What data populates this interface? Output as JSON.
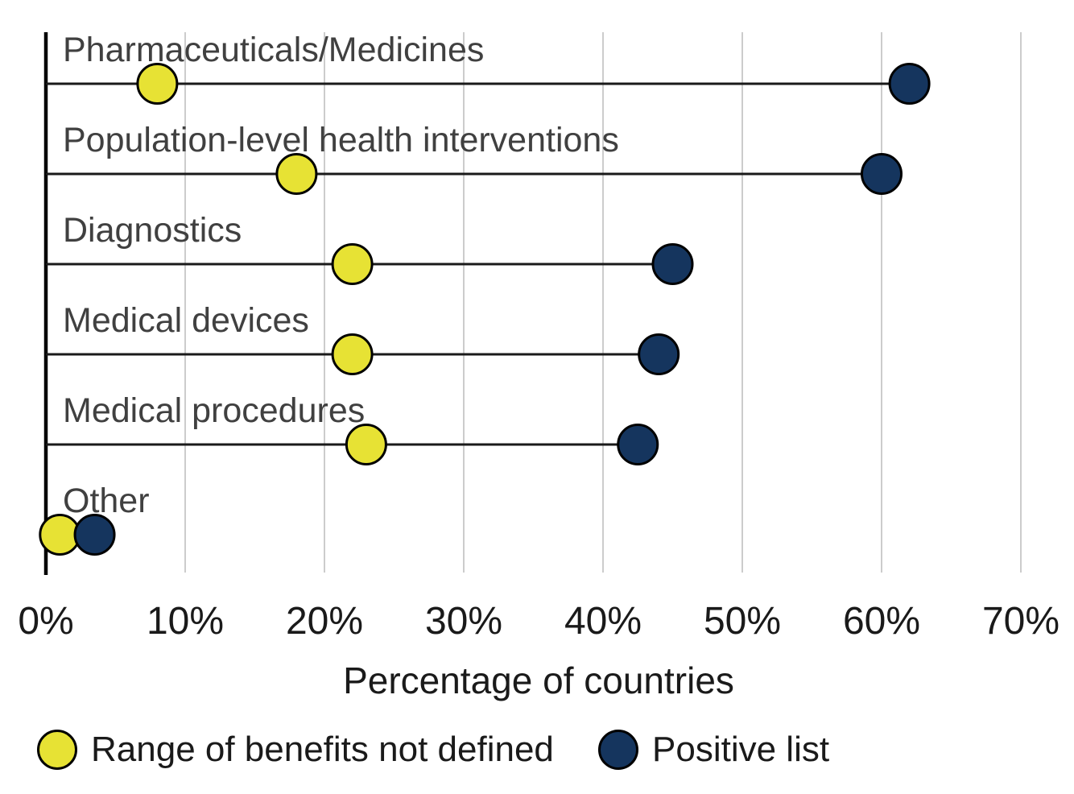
{
  "chart_data": {
    "type": "scatter",
    "variant": "horizontal-dumbbell-dot-plot",
    "title": "",
    "categories": [
      "Pharmaceuticals/Medicines",
      "Population-level health interventions",
      "Diagnostics",
      "Medical devices",
      "Medical procedures",
      "Other"
    ],
    "series": [
      {
        "name": "Range of benefits not defined",
        "color": "#e7e234",
        "values": [
          8,
          18,
          22,
          22,
          23,
          1
        ]
      },
      {
        "name": "Positive list",
        "color": "#15355e",
        "values": [
          62,
          60,
          45,
          44,
          42.5,
          3.5
        ]
      }
    ],
    "xlabel": "Percentage of countries",
    "xlim": [
      0,
      73
    ],
    "x_ticks": [
      0,
      10,
      20,
      30,
      40,
      50,
      60,
      70
    ],
    "x_tick_labels": [
      "0%",
      "10%",
      "20%",
      "30%",
      "40%",
      "50%",
      "60%",
      "70%"
    ],
    "grid": "vertical-gridlines-only",
    "legend_position": "bottom-left"
  },
  "colors": {
    "background": "#ffffff",
    "gridline": "#cccccc",
    "axis_line": "#000000",
    "connector_line": "#1a1a1a",
    "category_label": "#404040",
    "tick_label": "#1a1a1a",
    "dot_outline": "#000000"
  }
}
